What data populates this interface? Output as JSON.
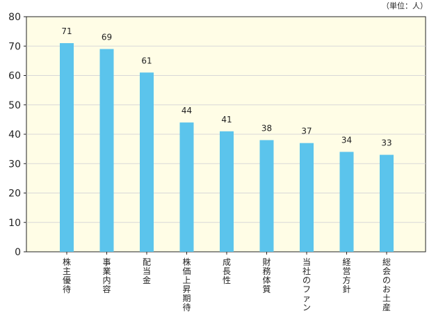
{
  "chart_data": {
    "type": "bar",
    "unit_label": "（単位：人）",
    "categories": [
      "株主優待",
      "事業内容",
      "配当金",
      "株価上昇期待",
      "成長性",
      "財務体質",
      "当社のファン",
      "経営方針",
      "総会のお土産"
    ],
    "values": [
      71,
      69,
      61,
      44,
      41,
      38,
      37,
      34,
      33
    ],
    "data_labels": [
      "71",
      "69",
      "61",
      "44",
      "41",
      "38",
      "37",
      "34",
      "33"
    ],
    "y_ticks": [
      "0",
      "10",
      "20",
      "30",
      "40",
      "50",
      "60",
      "70",
      "80"
    ],
    "ylim": [
      0,
      80
    ],
    "grid": true,
    "legend": "none"
  },
  "colors": {
    "plot_background": "#FFFDE6",
    "bar": "#5BC4EC",
    "grid": "#D8D8D8",
    "axis": "#222222"
  }
}
